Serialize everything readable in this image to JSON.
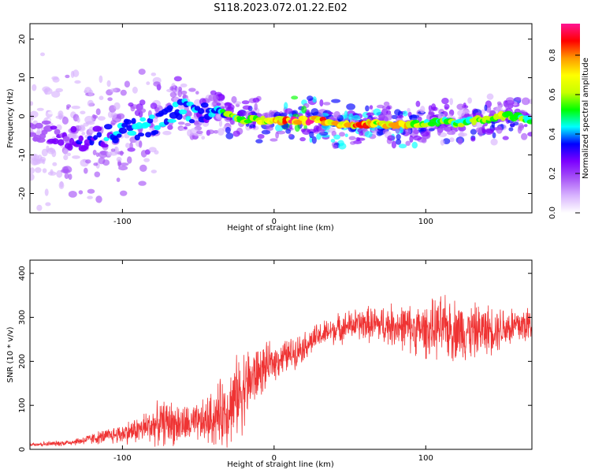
{
  "title": "S118.2023.072.01.22.E02",
  "chart_data": [
    {
      "type": "heatmap",
      "xlabel": "Height of straight line (km)",
      "ylabel": "Frequency (Hz)",
      "xlim": [
        -161,
        170
      ],
      "ylim": [
        -25,
        24
      ],
      "xticks": [
        -100,
        0,
        100
      ],
      "yticks": [
        -20,
        -10,
        0,
        10,
        20
      ],
      "colorbar": {
        "label": "Normalized spectral amplitude",
        "range": [
          0.0,
          0.96
        ],
        "ticks": [
          0.0,
          0.2,
          0.4,
          0.6,
          0.8
        ],
        "colors": [
          "#ffffff",
          "#d8b4fe",
          "#a855f7",
          "#7c00ff",
          "#0000ff",
          "#00ffff",
          "#00ff00",
          "#c8ff00",
          "#ffff00",
          "#ff9900",
          "#ff0000",
          "#ff1493"
        ]
      },
      "ridge": [
        {
          "x": -161,
          "y": -4,
          "a": 0.18
        },
        {
          "x": -150,
          "y": -4,
          "a": 0.2
        },
        {
          "x": -140,
          "y": -5,
          "a": 0.25
        },
        {
          "x": -130,
          "y": -6,
          "a": 0.3
        },
        {
          "x": -120,
          "y": -6,
          "a": 0.35
        },
        {
          "x": -110,
          "y": -5,
          "a": 0.38
        },
        {
          "x": -100,
          "y": -4,
          "a": 0.4
        },
        {
          "x": -90,
          "y": -3,
          "a": 0.42
        },
        {
          "x": -80,
          "y": -2,
          "a": 0.42
        },
        {
          "x": -70,
          "y": 0,
          "a": 0.4
        },
        {
          "x": -60,
          "y": 2,
          "a": 0.42
        },
        {
          "x": -50,
          "y": 0,
          "a": 0.38
        },
        {
          "x": -40,
          "y": 2,
          "a": 0.42
        },
        {
          "x": -30,
          "y": 0,
          "a": 0.55
        },
        {
          "x": -20,
          "y": -1,
          "a": 0.6
        },
        {
          "x": -10,
          "y": -1,
          "a": 0.65
        },
        {
          "x": 0,
          "y": -1,
          "a": 0.7
        },
        {
          "x": 10,
          "y": -1,
          "a": 0.85
        },
        {
          "x": 20,
          "y": -1,
          "a": 0.9
        },
        {
          "x": 30,
          "y": -1,
          "a": 0.8
        },
        {
          "x": 40,
          "y": -2,
          "a": 0.75
        },
        {
          "x": 50,
          "y": -2,
          "a": 0.78
        },
        {
          "x": 60,
          "y": -2,
          "a": 0.8
        },
        {
          "x": 70,
          "y": -2,
          "a": 0.72
        },
        {
          "x": 80,
          "y": -2,
          "a": 0.75
        },
        {
          "x": 90,
          "y": -2,
          "a": 0.7
        },
        {
          "x": 100,
          "y": -2,
          "a": 0.6
        },
        {
          "x": 110,
          "y": -1,
          "a": 0.58
        },
        {
          "x": 120,
          "y": -2,
          "a": 0.55
        },
        {
          "x": 130,
          "y": -1,
          "a": 0.55
        },
        {
          "x": 140,
          "y": -1,
          "a": 0.6
        },
        {
          "x": 150,
          "y": 0,
          "a": 0.65
        },
        {
          "x": 160,
          "y": 0,
          "a": 0.62
        },
        {
          "x": 170,
          "y": -1,
          "a": 0.5
        }
      ]
    },
    {
      "type": "line",
      "xlabel": "Height of straight line (km)",
      "ylabel": "SNR (10 * v/v)",
      "xlim": [
        -161,
        170
      ],
      "ylim": [
        0,
        430
      ],
      "xticks": [
        -100,
        0,
        100
      ],
      "yticks": [
        0,
        100,
        200,
        300,
        400
      ],
      "color": "#ef3333",
      "series": [
        {
          "x": [
            -161,
            -150,
            -140,
            -130,
            -120,
            -110,
            -100,
            -90,
            -80,
            -70,
            -60,
            -50,
            -40,
            -30,
            -20,
            -10,
            0,
            10,
            20,
            30,
            40,
            50,
            60,
            70,
            80,
            90,
            100,
            110,
            120,
            130,
            140,
            150,
            160,
            170
          ],
          "values": [
            12,
            12,
            14,
            18,
            24,
            30,
            36,
            44,
            55,
            62,
            55,
            58,
            70,
            95,
            140,
            175,
            200,
            215,
            235,
            258,
            272,
            282,
            285,
            283,
            282,
            275,
            270,
            276,
            272,
            268,
            272,
            278,
            280,
            285
          ],
          "noise": [
            5,
            5,
            6,
            8,
            12,
            16,
            22,
            28,
            40,
            48,
            42,
            40,
            60,
            80,
            85,
            55,
            38,
            35,
            30,
            28,
            30,
            32,
            36,
            40,
            45,
            50,
            55,
            65,
            65,
            58,
            52,
            48,
            45,
            42
          ]
        }
      ]
    }
  ]
}
